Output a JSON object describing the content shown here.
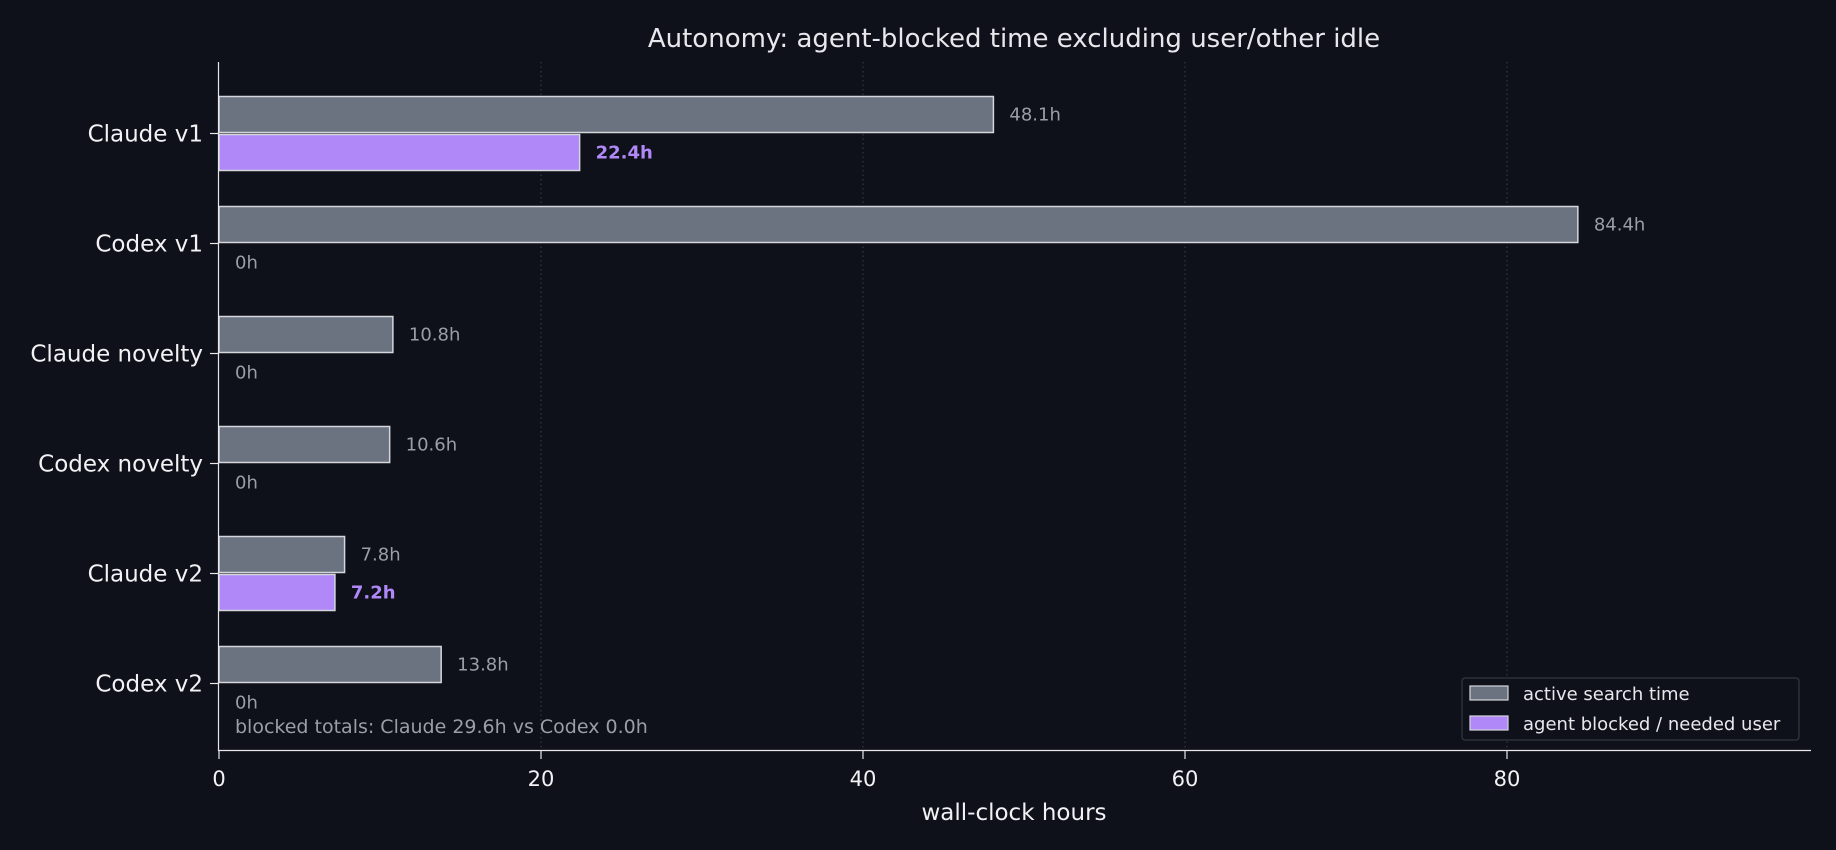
{
  "chart_data": {
    "type": "bar",
    "orientation": "horizontal",
    "title": "Autonomy: agent-blocked time excluding user/other idle",
    "xlabel": "wall-clock hours",
    "ylabel": "",
    "xlim": [
      0,
      99
    ],
    "xticks": [
      0,
      20,
      40,
      60,
      80
    ],
    "grid": "x-major-dotted",
    "categories": [
      "Claude v1",
      "Codex v1",
      "Claude novelty",
      "Codex novelty",
      "Claude v2",
      "Codex v2"
    ],
    "series": [
      {
        "name": "active search time",
        "color": "#6b7280",
        "values": [
          48.1,
          84.4,
          10.8,
          10.6,
          7.8,
          13.8
        ],
        "labels": [
          "48.1h",
          "84.4h",
          "10.8h",
          "10.6h",
          "7.8h",
          "13.8h"
        ]
      },
      {
        "name": "agent blocked / needed user",
        "color": "#b088f8",
        "values": [
          22.4,
          0,
          0,
          0,
          7.2,
          0
        ],
        "labels": [
          "22.4h",
          "0h",
          "0h",
          "0h",
          "7.2h",
          "0h"
        ]
      }
    ],
    "annotation": "blocked totals: Claude 29.6h vs Codex 0.0h",
    "legend_position": "bottom-right"
  },
  "colors": {
    "background": "#0e111a",
    "active_bar": "#6b7280",
    "blocked_bar": "#b088f8",
    "bar_edge": "#d4d6dc",
    "axis": "#e8e8ec",
    "grid": "#3a3f4a"
  }
}
